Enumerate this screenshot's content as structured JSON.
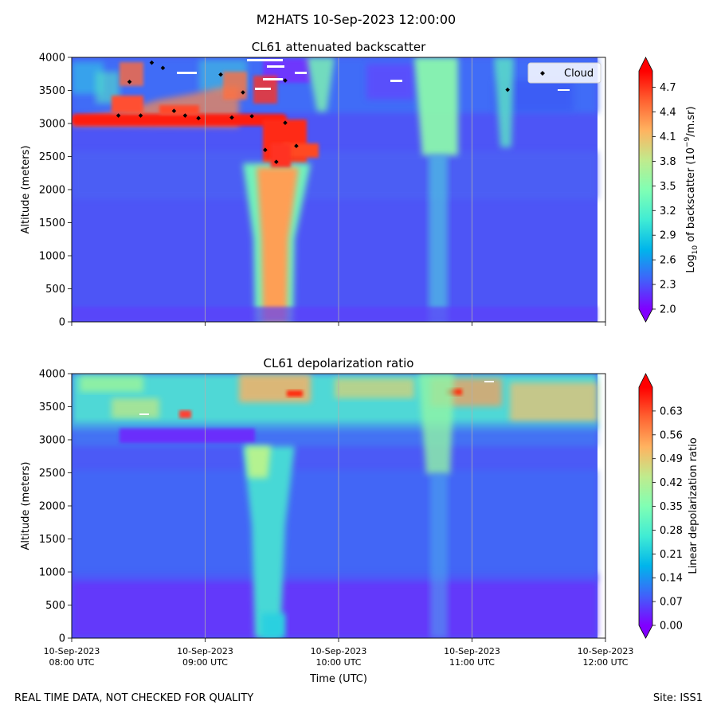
{
  "suptitle": "M2HATS 10-Sep-2023 12:00:00",
  "footer": {
    "left": "REAL TIME DATA, NOT CHECKED FOR QUALITY",
    "right": "Site: ISS1"
  },
  "chart_data": [
    {
      "type": "heatmap",
      "title": "CL61 attenuated backscatter",
      "xlabel": "",
      "ylabel": "Altitude (meters)",
      "colorbar_label": "Log10 of backscatter (10^-9/m.sr)",
      "colorbar_label_parts": {
        "a": "Log",
        "sub": "10",
        "b": " of backscatter (10",
        "sup": "−9",
        "c": "/m.sr)"
      },
      "colormap": "rainbow",
      "vmin": 2.0,
      "vmax": 4.9,
      "colorbar_ticks": [
        "2.0",
        "2.3",
        "2.6",
        "2.9",
        "3.2",
        "3.5",
        "3.8",
        "4.1",
        "4.4",
        "4.7"
      ],
      "ylim": [
        0,
        4000
      ],
      "yticks": [
        "0",
        "500",
        "1000",
        "1500",
        "2000",
        "2500",
        "3000",
        "3500",
        "4000"
      ],
      "xlim": [
        "2023-09-10 08:00",
        "2023-09-10 12:00"
      ],
      "xticks": [],
      "grid": "vertical",
      "background_level": 2.35,
      "legend": {
        "label": "Cloud",
        "placement": "top-right"
      },
      "features": [
        {
          "time": "08:15–09:45",
          "alt": [
            2980,
            3150
          ],
          "level": 4.9,
          "desc": "cloud layer"
        },
        {
          "time": "09:25–09:38",
          "alt": [
            0,
            3000
          ],
          "level": 4.0,
          "desc": "precipitation column"
        },
        {
          "time": "10:45–10:52",
          "alt": [
            2500,
            4000
          ],
          "level": 3.3,
          "desc": "cloud column"
        }
      ],
      "cloud_points": [
        {
          "time": "08:21",
          "altitude": 3120
        },
        {
          "time": "08:26",
          "altitude": 3630
        },
        {
          "time": "08:31",
          "altitude": 3120
        },
        {
          "time": "08:36",
          "altitude": 3920
        },
        {
          "time": "08:41",
          "altitude": 3840
        },
        {
          "time": "08:46",
          "altitude": 3190
        },
        {
          "time": "08:51",
          "altitude": 3120
        },
        {
          "time": "08:57",
          "altitude": 3080
        },
        {
          "time": "09:07",
          "altitude": 3740
        },
        {
          "time": "09:12",
          "altitude": 3090
        },
        {
          "time": "09:17",
          "altitude": 3470
        },
        {
          "time": "09:21",
          "altitude": 3110
        },
        {
          "time": "09:27",
          "altitude": 2600
        },
        {
          "time": "09:32",
          "altitude": 2420
        },
        {
          "time": "09:36",
          "altitude": 3650
        },
        {
          "time": "09:36",
          "altitude": 3010
        },
        {
          "time": "09:41",
          "altitude": 2660
        },
        {
          "time": "11:16",
          "altitude": 3510
        }
      ]
    },
    {
      "type": "heatmap",
      "title": "CL61 depolarization ratio",
      "xlabel": "Time (UTC)",
      "ylabel": "Altitude (meters)",
      "colorbar_label": "Linear depolarization ratio",
      "colormap": "rainbow",
      "vmin": 0.0,
      "vmax": 0.7,
      "colorbar_ticks": [
        "0.00",
        "0.07",
        "0.14",
        "0.21",
        "0.28",
        "0.35",
        "0.42",
        "0.49",
        "0.56",
        "0.63"
      ],
      "ylim": [
        0,
        4000
      ],
      "yticks": [
        "0",
        "500",
        "1000",
        "1500",
        "2000",
        "2500",
        "3000",
        "3500",
        "4000"
      ],
      "xlim": [
        "2023-09-10 08:00",
        "2023-09-10 12:00"
      ],
      "xticks": [
        {
          "date": "10-Sep-2023",
          "time": "08:00 UTC"
        },
        {
          "date": "10-Sep-2023",
          "time": "09:00 UTC"
        },
        {
          "date": "10-Sep-2023",
          "time": "10:00 UTC"
        },
        {
          "date": "10-Sep-2023",
          "time": "11:00 UTC"
        },
        {
          "date": "10-Sep-2023",
          "time": "12:00 UTC"
        }
      ],
      "grid": "vertical",
      "features": [
        {
          "time": "08:00–12:00",
          "alt": [
            0,
            2800
          ],
          "level": 0.1,
          "desc": "background"
        },
        {
          "time": "08:00–12:00",
          "alt": [
            3100,
            4000
          ],
          "level": 0.4,
          "desc": "noisy upper layer"
        },
        {
          "time": "09:20–09:38",
          "alt": [
            0,
            2900
          ],
          "level": 0.25,
          "desc": "precipitation column"
        }
      ]
    }
  ]
}
